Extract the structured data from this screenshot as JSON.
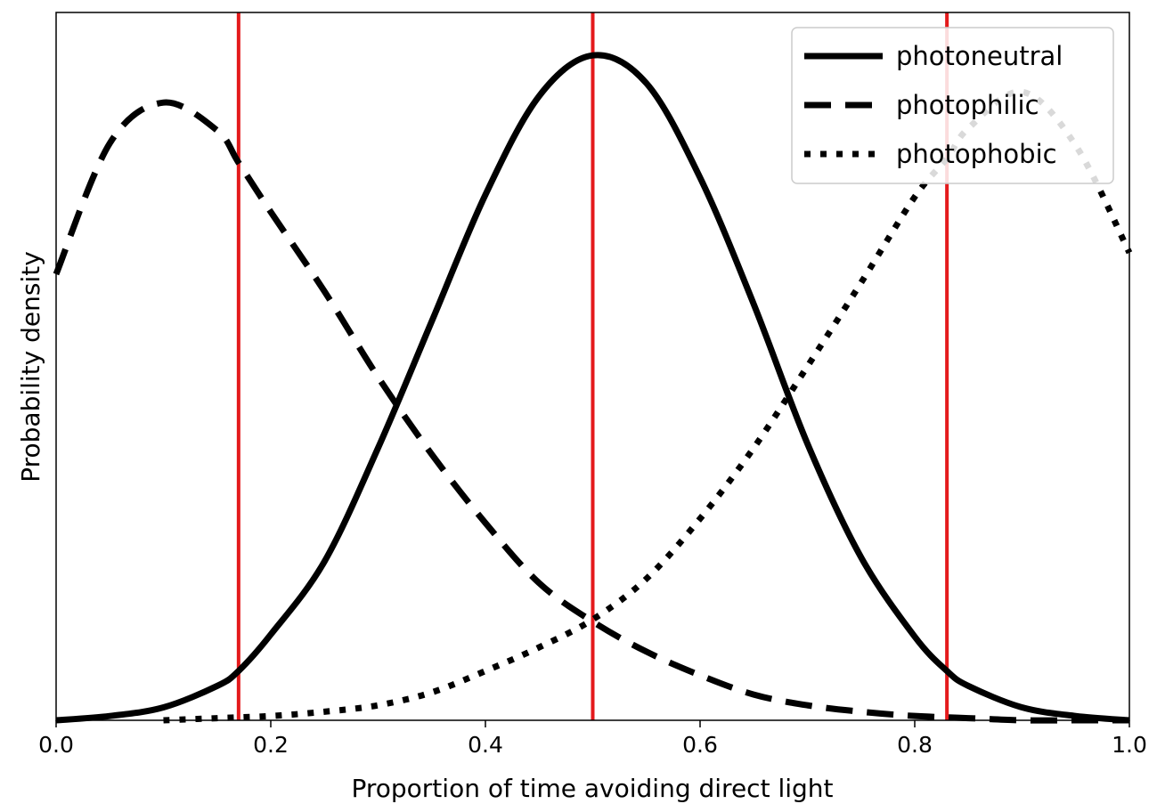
{
  "chart_data": {
    "type": "line",
    "xlabel": "Proportion of time avoiding direct light",
    "ylabel": "Probability density",
    "xlim": [
      0.0,
      1.0
    ],
    "ylim": [
      0,
      3.3
    ],
    "xticks": [
      "0.0",
      "0.2",
      "0.4",
      "0.6",
      "0.8",
      "1.0"
    ],
    "y_tick_labels_shown": false,
    "grid": false,
    "legend": "top-right",
    "vertical_lines": {
      "color": "#e41a1c",
      "x": [
        0.17,
        0.5,
        0.83
      ]
    },
    "series": [
      {
        "name": "photoneutral",
        "style": "solid",
        "x": [
          0.0,
          0.05,
          0.1,
          0.15,
          0.17,
          0.2,
          0.25,
          0.3,
          0.35,
          0.4,
          0.45,
          0.5,
          0.55,
          0.6,
          0.65,
          0.7,
          0.75,
          0.8,
          0.83,
          0.85,
          0.9,
          0.95,
          1.0
        ],
        "y": [
          0.0,
          0.02,
          0.06,
          0.16,
          0.23,
          0.4,
          0.74,
          1.27,
          1.86,
          2.45,
          2.91,
          3.1,
          2.97,
          2.53,
          1.94,
          1.29,
          0.76,
          0.39,
          0.23,
          0.16,
          0.06,
          0.02,
          0.0
        ]
      },
      {
        "name": "photophilic",
        "style": "dashed",
        "x": [
          0.0,
          0.05,
          0.1,
          0.15,
          0.17,
          0.2,
          0.25,
          0.3,
          0.35,
          0.4,
          0.45,
          0.5,
          0.55,
          0.6,
          0.65,
          0.7,
          0.75,
          0.8,
          0.85,
          0.9,
          0.95,
          1.0
        ],
        "y": [
          2.08,
          2.69,
          2.88,
          2.75,
          2.6,
          2.37,
          2.0,
          1.6,
          1.24,
          0.92,
          0.64,
          0.46,
          0.32,
          0.21,
          0.12,
          0.07,
          0.04,
          0.02,
          0.01,
          0.0,
          0.0,
          0.0
        ]
      },
      {
        "name": "photophobic",
        "style": "dotted",
        "x": [
          0.1,
          0.15,
          0.2,
          0.25,
          0.3,
          0.35,
          0.4,
          0.45,
          0.5,
          0.55,
          0.6,
          0.65,
          0.7,
          0.75,
          0.8,
          0.83,
          0.85,
          0.9,
          0.95,
          1.0
        ],
        "y": [
          0.0,
          0.01,
          0.02,
          0.04,
          0.07,
          0.13,
          0.23,
          0.34,
          0.47,
          0.66,
          0.94,
          1.27,
          1.65,
          2.04,
          2.44,
          2.62,
          2.76,
          2.93,
          2.68,
          2.18
        ]
      }
    ]
  }
}
